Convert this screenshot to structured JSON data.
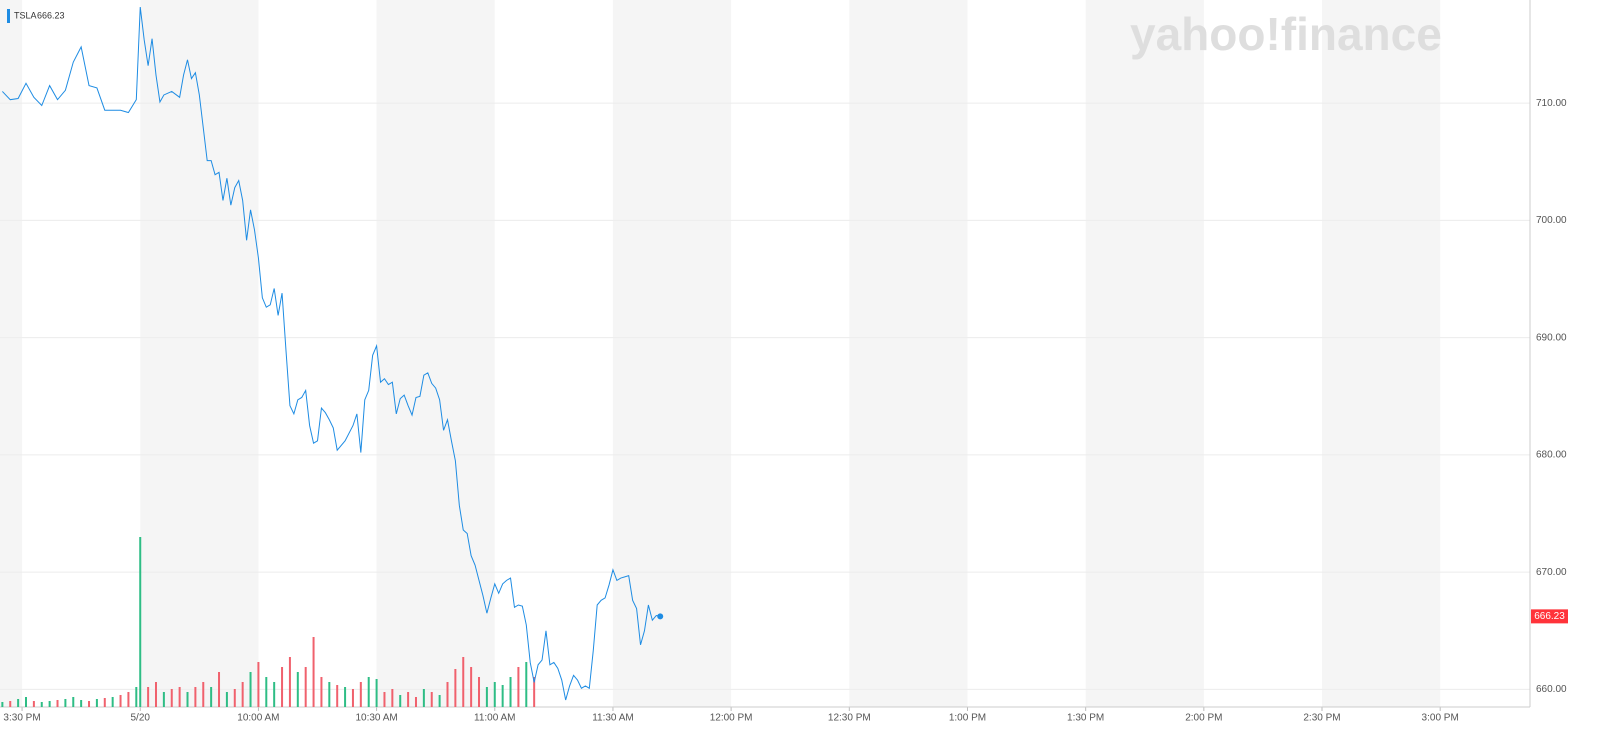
{
  "chart_data": {
    "type": "line",
    "symbol": "TSLA",
    "watermark": "yahoo!finance",
    "xlim": [
      -5.6,
      382.8
    ],
    "ylim": [
      658.5,
      718.8
    ],
    "xticks": [
      {
        "value": 0,
        "label": "3:30 PM"
      },
      {
        "value": 30,
        "label": "5/20"
      },
      {
        "value": 60,
        "label": "10:00 AM"
      },
      {
        "value": 90,
        "label": "10:30 AM"
      },
      {
        "value": 120,
        "label": "11:00 AM"
      },
      {
        "value": 150,
        "label": "11:30 AM"
      },
      {
        "value": 180,
        "label": "12:00 PM"
      },
      {
        "value": 210,
        "label": "12:30 PM"
      },
      {
        "value": 240,
        "label": "1:00 PM"
      },
      {
        "value": 270,
        "label": "1:30 PM"
      },
      {
        "value": 300,
        "label": "2:00 PM"
      },
      {
        "value": 330,
        "label": "2:30 PM"
      },
      {
        "value": 360,
        "label": "3:00 PM"
      }
    ],
    "yticks": [
      {
        "value": 660,
        "label": "660.00"
      },
      {
        "value": 670,
        "label": "670.00"
      },
      {
        "value": 680,
        "label": "680.00"
      },
      {
        "value": 690,
        "label": "690.00"
      },
      {
        "value": 700,
        "label": "700.00"
      },
      {
        "value": 710,
        "label": "710.00"
      }
    ],
    "grid": true,
    "series": [
      {
        "color": "#1e8ce3",
        "x": [
          -5,
          -3,
          -1,
          1,
          3,
          5,
          7,
          9,
          11,
          13,
          15,
          17,
          19,
          21,
          23,
          25,
          27,
          29,
          30,
          31,
          32,
          33,
          34,
          35,
          36,
          38,
          40,
          41,
          42,
          43,
          44,
          45,
          47,
          48,
          49,
          50,
          51,
          52,
          53,
          54,
          55,
          56,
          57,
          58,
          59,
          60,
          61,
          62,
          63,
          64,
          65,
          66,
          67,
          68,
          69,
          70,
          71,
          72,
          73,
          74,
          75,
          76,
          77,
          78,
          79,
          80,
          82,
          84,
          85,
          86,
          87,
          88,
          89,
          90,
          91,
          92,
          93,
          94,
          95,
          96,
          97,
          98,
          99,
          100,
          101,
          102,
          103,
          104,
          105,
          106,
          107,
          108,
          109,
          110,
          111,
          112,
          113,
          114,
          115,
          116,
          117,
          118,
          119,
          120,
          121,
          122,
          123,
          124,
          125,
          126,
          127,
          128,
          129,
          130,
          131,
          132,
          133,
          134,
          135,
          136,
          137,
          138,
          139,
          140,
          141,
          142,
          143,
          144,
          145,
          146,
          147,
          148,
          149,
          150,
          151,
          152,
          153,
          154,
          155,
          156,
          157,
          158,
          159,
          160,
          161,
          162
        ],
        "values": [
          711.0,
          710.3,
          710.4,
          711.7,
          710.5,
          709.8,
          711.5,
          710.3,
          711.1,
          713.5,
          714.8,
          711.5,
          711.3,
          709.4,
          709.4,
          709.4,
          709.2,
          710.3,
          718.2,
          715.4,
          713.2,
          715.5,
          712.4,
          710.1,
          710.7,
          711.0,
          710.5,
          712.4,
          713.7,
          712.1,
          712.6,
          710.7,
          705.1,
          705.1,
          703.9,
          704.1,
          701.7,
          703.6,
          701.3,
          702.8,
          703.4,
          701.7,
          698.3,
          700.9,
          699.2,
          696.8,
          693.4,
          692.6,
          692.8,
          694.2,
          691.9,
          693.8,
          688.9,
          684.2,
          683.5,
          684.7,
          684.9,
          685.5,
          682.5,
          681.0,
          681.2,
          684.0,
          683.6,
          683.0,
          682.3,
          680.4,
          681.2,
          682.5,
          683.5,
          680.2,
          684.7,
          685.5,
          688.5,
          689.3,
          686.2,
          686.5,
          686.0,
          686.2,
          683.5,
          684.8,
          685.1,
          684.2,
          683.4,
          684.9,
          685.0,
          686.8,
          687.0,
          686.1,
          685.7,
          684.7,
          682.1,
          683.0,
          681.2,
          679.5,
          675.7,
          673.6,
          673.3,
          671.4,
          670.6,
          669.3,
          668.0,
          666.5,
          667.8,
          669.0,
          668.2,
          669.0,
          669.3,
          669.5,
          667.0,
          667.2,
          667.1,
          665.5,
          662.3,
          660.6,
          662.1,
          662.5,
          665.0,
          662.1,
          662.3,
          661.8,
          660.8,
          659.1,
          660.3,
          661.2,
          660.8,
          660.1,
          660.3,
          660.1,
          663.3,
          667.2,
          667.6,
          667.8,
          668.9,
          670.2,
          669.3,
          669.5,
          669.6,
          669.7,
          667.6,
          666.9,
          663.8,
          665.0,
          667.2,
          665.9,
          666.3,
          666.23
        ]
      }
    ],
    "volume": {
      "vlim": [
        0,
        200
      ],
      "x": [
        -5,
        -3,
        -1,
        1,
        3,
        5,
        7,
        9,
        11,
        13,
        15,
        17,
        19,
        21,
        23,
        25,
        27,
        29,
        30,
        32,
        34,
        36,
        38,
        40,
        42,
        44,
        46,
        48,
        50,
        52,
        54,
        56,
        58,
        60,
        62,
        64,
        66,
        68,
        70,
        72,
        74,
        76,
        78,
        80,
        82,
        84,
        86,
        88,
        90,
        92,
        94,
        96,
        98,
        100,
        102,
        104,
        106,
        108,
        110,
        112,
        114,
        116,
        118,
        120,
        122,
        124,
        126,
        128,
        130
      ],
      "values": [
        5,
        6,
        8,
        10,
        6,
        5,
        6,
        7,
        8,
        10,
        7,
        6,
        8,
        9,
        10,
        12,
        15,
        20,
        170,
        20,
        25,
        15,
        18,
        20,
        15,
        20,
        25,
        20,
        35,
        15,
        18,
        25,
        35,
        45,
        30,
        25,
        40,
        50,
        35,
        40,
        70,
        30,
        25,
        22,
        20,
        18,
        25,
        30,
        28,
        15,
        18,
        12,
        15,
        10,
        18,
        15,
        12,
        25,
        38,
        50,
        40,
        30,
        20,
        25,
        22,
        30,
        40,
        45,
        30
      ],
      "colors": [
        "#2ebd85",
        "#f0616d",
        "#2ebd85",
        "#2ebd85",
        "#f0616d",
        "#2ebd85",
        "#2ebd85",
        "#f0616d",
        "#2ebd85",
        "#2ebd85",
        "#2ebd85",
        "#f0616d",
        "#2ebd85",
        "#f0616d",
        "#2ebd85",
        "#f0616d",
        "#f0616d",
        "#2ebd85",
        "#2ebd85",
        "#f0616d",
        "#f0616d",
        "#2ebd85",
        "#f0616d",
        "#f0616d",
        "#2ebd85",
        "#f0616d",
        "#f0616d",
        "#2ebd85",
        "#f0616d",
        "#2ebd85",
        "#f0616d",
        "#f0616d",
        "#2ebd85",
        "#f0616d",
        "#2ebd85",
        "#2ebd85",
        "#f0616d",
        "#f0616d",
        "#2ebd85",
        "#f0616d",
        "#f0616d",
        "#f0616d",
        "#2ebd85",
        "#f0616d",
        "#2ebd85",
        "#f0616d",
        "#f0616d",
        "#2ebd85",
        "#2ebd85",
        "#f0616d",
        "#f0616d",
        "#2ebd85",
        "#f0616d",
        "#f0616d",
        "#2ebd85",
        "#f0616d",
        "#2ebd85",
        "#f0616d",
        "#f0616d",
        "#f0616d",
        "#f0616d",
        "#f0616d",
        "#2ebd85",
        "#2ebd85",
        "#2ebd85",
        "#2ebd85",
        "#f0616d",
        "#2ebd85",
        "#f0616d"
      ]
    },
    "badge_color": "#ff333a"
  }
}
